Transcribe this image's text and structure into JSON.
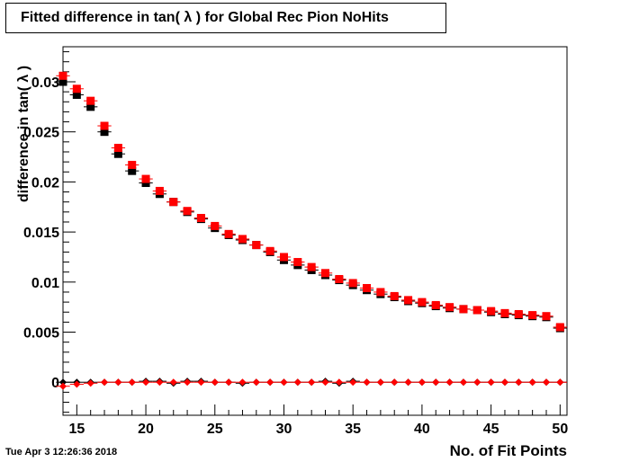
{
  "title": "Fitted difference in tan( λ ) for Global Rec Pion NoHits",
  "timestamp": "Tue Apr  3 12:26:36 2018",
  "chart_data": {
    "type": "scatter",
    "xlabel": "No. of Fit Points",
    "ylabel": "difference in tan( λ )",
    "xlim": [
      14,
      50.5
    ],
    "ylim": [
      -0.0033,
      0.0335
    ],
    "xticks": [
      15,
      20,
      25,
      30,
      35,
      40,
      45,
      50
    ],
    "yticks": [
      0,
      0.005,
      0.01,
      0.015,
      0.02,
      0.025,
      0.03
    ],
    "ytick_labels": [
      "0",
      "0.005",
      "0.01",
      "0.015",
      "0.02",
      "0.025",
      "0.03"
    ],
    "grid": false,
    "series": [
      {
        "marker": "square",
        "color": "#000000",
        "x": [
          14,
          15,
          16,
          17,
          18,
          19,
          20,
          21,
          22,
          23,
          24,
          25,
          26,
          27,
          28,
          29,
          30,
          31,
          32,
          33,
          34,
          35,
          36,
          37,
          38,
          39,
          40,
          41,
          42,
          43,
          44,
          45,
          46,
          47,
          48,
          49,
          50
        ],
        "y": [
          0.03,
          0.0287,
          0.0275,
          0.025,
          0.0228,
          0.0211,
          0.0199,
          0.0188,
          0.018,
          0.017,
          0.0163,
          0.0154,
          0.0147,
          0.0142,
          0.0137,
          0.013,
          0.0122,
          0.0117,
          0.0112,
          0.0107,
          0.0102,
          0.0097,
          0.0092,
          0.0088,
          0.0085,
          0.0081,
          0.0079,
          0.0076,
          0.0074,
          0.0073,
          0.0072,
          0.007,
          0.0068,
          0.0067,
          0.0066,
          0.0065,
          0.0054
        ]
      },
      {
        "marker": "square",
        "color": "#ff0000",
        "x": [
          14,
          15,
          16,
          17,
          18,
          19,
          20,
          21,
          22,
          23,
          24,
          25,
          26,
          27,
          28,
          29,
          30,
          31,
          32,
          33,
          34,
          35,
          36,
          37,
          38,
          39,
          40,
          41,
          42,
          43,
          44,
          45,
          46,
          47,
          48,
          49,
          50
        ],
        "y": [
          0.0306,
          0.0293,
          0.0281,
          0.0256,
          0.0234,
          0.0217,
          0.0203,
          0.0191,
          0.018,
          0.0171,
          0.0164,
          0.0156,
          0.0148,
          0.0143,
          0.0137,
          0.0131,
          0.0125,
          0.012,
          0.0115,
          0.0109,
          0.0103,
          0.0099,
          0.0094,
          0.009,
          0.0086,
          0.0082,
          0.008,
          0.0077,
          0.0075,
          0.0073,
          0.0072,
          0.0071,
          0.0069,
          0.0068,
          0.0067,
          0.0066,
          0.0055
        ]
      },
      {
        "marker": "diamond",
        "color": "#000000",
        "x": [
          14,
          15,
          16,
          17,
          18,
          19,
          20,
          21,
          22,
          23,
          24,
          25,
          26,
          27,
          28,
          29,
          30,
          31,
          32,
          33,
          34,
          35,
          36,
          37,
          38,
          39,
          40,
          41,
          42,
          43,
          44,
          45,
          46,
          47,
          48,
          49,
          50
        ],
        "y": [
          0.0,
          0.0,
          0.0,
          0.0,
          0.0,
          0.0,
          0.0001,
          0.0001,
          -0.0001,
          0.0001,
          0.0001,
          0.0,
          0.0,
          -0.0001,
          0.0,
          0.0,
          0.0,
          0.0,
          0.0,
          0.0001,
          -0.0001,
          0.0001,
          0.0,
          0.0,
          0.0,
          0.0,
          0.0,
          0.0,
          0.0,
          0.0,
          0.0,
          0.0,
          0.0,
          0.0,
          0.0,
          0.0,
          0.0
        ]
      },
      {
        "marker": "diamond",
        "color": "#ff0000",
        "x": [
          14,
          15,
          16,
          17,
          18,
          19,
          20,
          21,
          22,
          23,
          24,
          25,
          26,
          27,
          28,
          29,
          30,
          31,
          32,
          33,
          34,
          35,
          36,
          37,
          38,
          39,
          40,
          41,
          42,
          43,
          44,
          45,
          46,
          47,
          48,
          49,
          50
        ],
        "y": [
          -0.0004,
          -0.0002,
          -0.0001,
          0.0,
          0.0,
          0.0,
          0.0,
          0.0,
          0.0,
          0.0,
          0.0,
          0.0,
          0.0,
          0.0,
          0.0,
          0.0,
          0.0,
          0.0,
          0.0,
          0.0,
          0.0,
          0.0,
          0.0,
          0.0,
          0.0,
          0.0,
          0.0,
          0.0,
          0.0,
          0.0,
          0.0,
          0.0,
          0.0,
          0.0,
          0.0,
          0.0,
          0.0
        ]
      }
    ]
  }
}
